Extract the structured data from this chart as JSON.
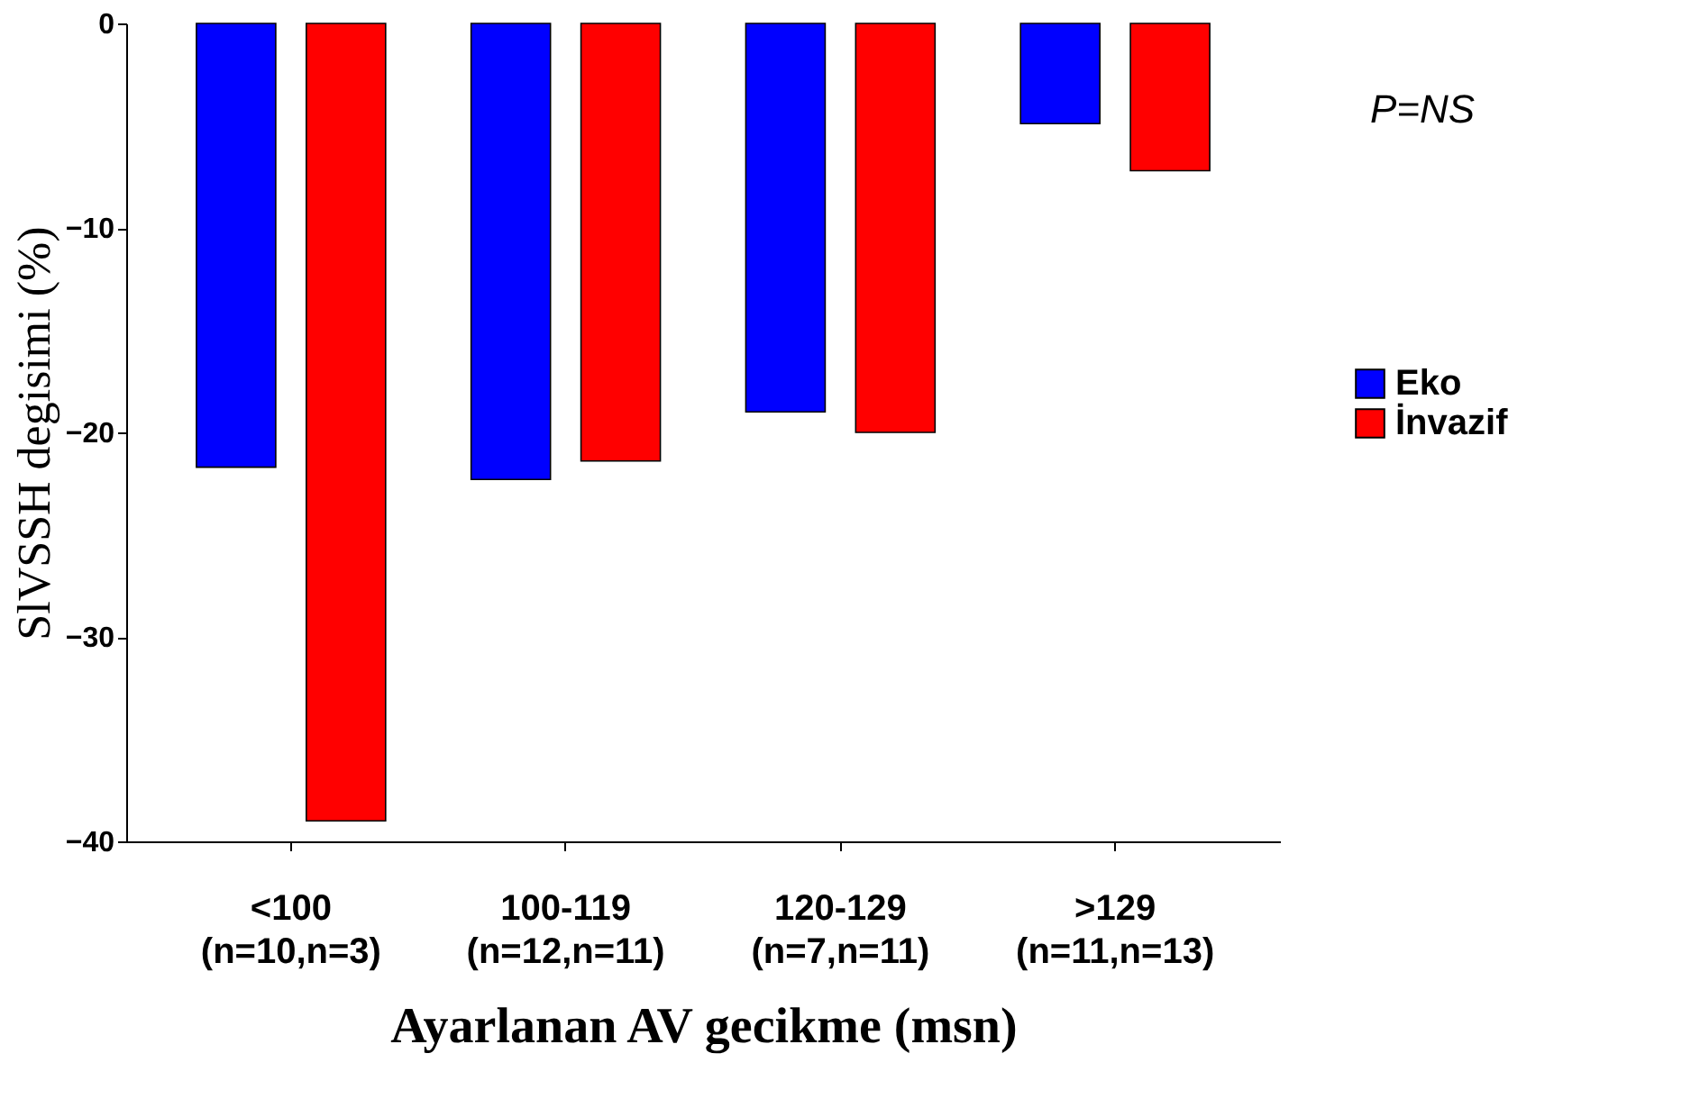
{
  "chart_data": {
    "type": "bar",
    "xlabel": "Ayarlanan AV gecikme (msn)",
    "ylabel": "SlVSSH degisimi (%)",
    "categories": [
      "<100\n(n=10,n=3)",
      "100-119\n(n=12,n=11)",
      "120-129\n(n=7,n=11)",
      ">129\n(n=11,n=13)"
    ],
    "series": [
      {
        "name": "Eko",
        "color": "#0000ff",
        "values": [
          -21.7,
          -22.3,
          -19.0,
          -4.9
        ]
      },
      {
        "name": "İnvazif",
        "color": "#ff0000",
        "values": [
          -39.0,
          -21.4,
          -20.0,
          -7.2
        ]
      }
    ],
    "ylim": [
      -40,
      0
    ],
    "yticks": [
      0,
      -10,
      -20,
      -30,
      -40
    ],
    "grid": false,
    "legend": "right",
    "annotations": [
      "P=NS"
    ]
  }
}
